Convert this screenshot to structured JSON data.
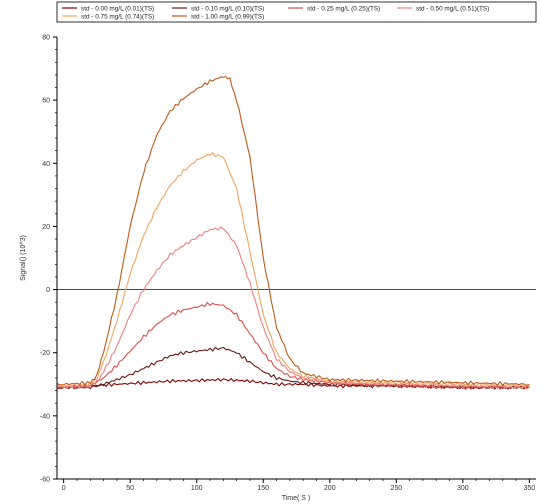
{
  "chart_data": {
    "type": "line",
    "xlabel": "Time( S )",
    "ylabel": "Signal() (10^3)",
    "xlim": [
      -5,
      355
    ],
    "ylim": [
      -60,
      80
    ],
    "x_ticks": [
      0,
      50,
      100,
      150,
      200,
      250,
      300,
      350
    ],
    "y_ticks": [
      -60,
      -40,
      -20,
      0,
      20,
      40,
      60,
      80
    ],
    "reference_line_y": 0,
    "legend_position": "top",
    "series": [
      {
        "name": "std - 0.00 mg/L (0.01)(TS)",
        "color": "#8b0000",
        "x": [
          -5,
          0,
          20,
          40,
          60,
          80,
          100,
          120,
          140,
          160,
          180,
          200,
          250,
          300,
          350
        ],
        "y": [
          -31.0,
          -31.0,
          -30.5,
          -30.0,
          -29.5,
          -29.0,
          -28.8,
          -28.5,
          -29.0,
          -30.0,
          -30.0,
          -30.5,
          -30.5,
          -31.0,
          -31.0
        ]
      },
      {
        "name": "std - 0.10 mg/L (0.10)(TS)",
        "color": "#6b1a1a",
        "x": [
          -5,
          0,
          20,
          30,
          40,
          50,
          60,
          70,
          80,
          90,
          100,
          110,
          120,
          130,
          140,
          150,
          160,
          170,
          180,
          200,
          250,
          300,
          350
        ],
        "y": [
          -31.0,
          -31.0,
          -31.0,
          -30.0,
          -28.5,
          -27.0,
          -25.0,
          -23.0,
          -21.0,
          -20.0,
          -19.5,
          -19.0,
          -18.5,
          -20.0,
          -23.0,
          -26.0,
          -28.0,
          -29.0,
          -29.5,
          -30.0,
          -30.5,
          -31.0,
          -31.0
        ]
      },
      {
        "name": "std - 0.25 mg/L (0.25)(TS)",
        "color": "#d94f4f",
        "x": [
          -5,
          0,
          20,
          30,
          40,
          50,
          60,
          70,
          80,
          90,
          100,
          110,
          120,
          130,
          140,
          150,
          160,
          170,
          180,
          200,
          250,
          300,
          350
        ],
        "y": [
          -31.0,
          -31.0,
          -30.5,
          -28.0,
          -24.0,
          -19.5,
          -15.0,
          -11.0,
          -8.0,
          -6.5,
          -5.5,
          -4.5,
          -5.0,
          -8.0,
          -14.0,
          -20.0,
          -25.0,
          -27.5,
          -28.5,
          -29.5,
          -30.5,
          -31.0,
          -31.0
        ]
      },
      {
        "name": "std - 0.50 mg/L (0.51)(TS)",
        "color": "#f08080",
        "x": [
          -5,
          0,
          20,
          25,
          30,
          40,
          50,
          60,
          70,
          80,
          90,
          100,
          110,
          120,
          130,
          140,
          150,
          160,
          170,
          180,
          200,
          250,
          300,
          350
        ],
        "y": [
          -31.0,
          -31.0,
          -30.5,
          -29.0,
          -26.0,
          -18.0,
          -8.0,
          0.0,
          6.0,
          11.0,
          14.0,
          16.5,
          19.0,
          19.5,
          14.0,
          2.0,
          -12.0,
          -22.0,
          -26.0,
          -28.0,
          -29.5,
          -30.0,
          -30.5,
          -31.0
        ]
      },
      {
        "name": "std - 0.75 mg/L (0.74)(TS)",
        "color": "#f4a460",
        "x": [
          -5,
          0,
          20,
          25,
          30,
          40,
          50,
          60,
          70,
          80,
          90,
          100,
          110,
          120,
          130,
          140,
          150,
          160,
          170,
          180,
          200,
          250,
          300,
          350
        ],
        "y": [
          -30.5,
          -30.5,
          -30.0,
          -28.0,
          -23.0,
          -10.0,
          5.0,
          17.0,
          26.0,
          33.0,
          37.5,
          41.0,
          43.0,
          42.0,
          32.0,
          12.0,
          -8.0,
          -20.0,
          -25.0,
          -27.5,
          -29.0,
          -29.5,
          -30.0,
          -30.5
        ]
      },
      {
        "name": "std - 1.00 mg/L (0.99)(TS)",
        "color": "#c05a1a",
        "x": [
          -5,
          0,
          20,
          25,
          30,
          40,
          50,
          60,
          70,
          80,
          90,
          100,
          110,
          120,
          125,
          130,
          140,
          150,
          160,
          170,
          180,
          200,
          250,
          300,
          350
        ],
        "y": [
          -30.0,
          -30.0,
          -29.5,
          -27.0,
          -20.0,
          -2.0,
          20.0,
          37.0,
          49.0,
          56.5,
          60.5,
          63.5,
          66.0,
          67.5,
          66.5,
          60.0,
          42.0,
          10.0,
          -12.0,
          -22.0,
          -26.5,
          -28.5,
          -29.0,
          -29.5,
          -30.0
        ]
      }
    ]
  }
}
